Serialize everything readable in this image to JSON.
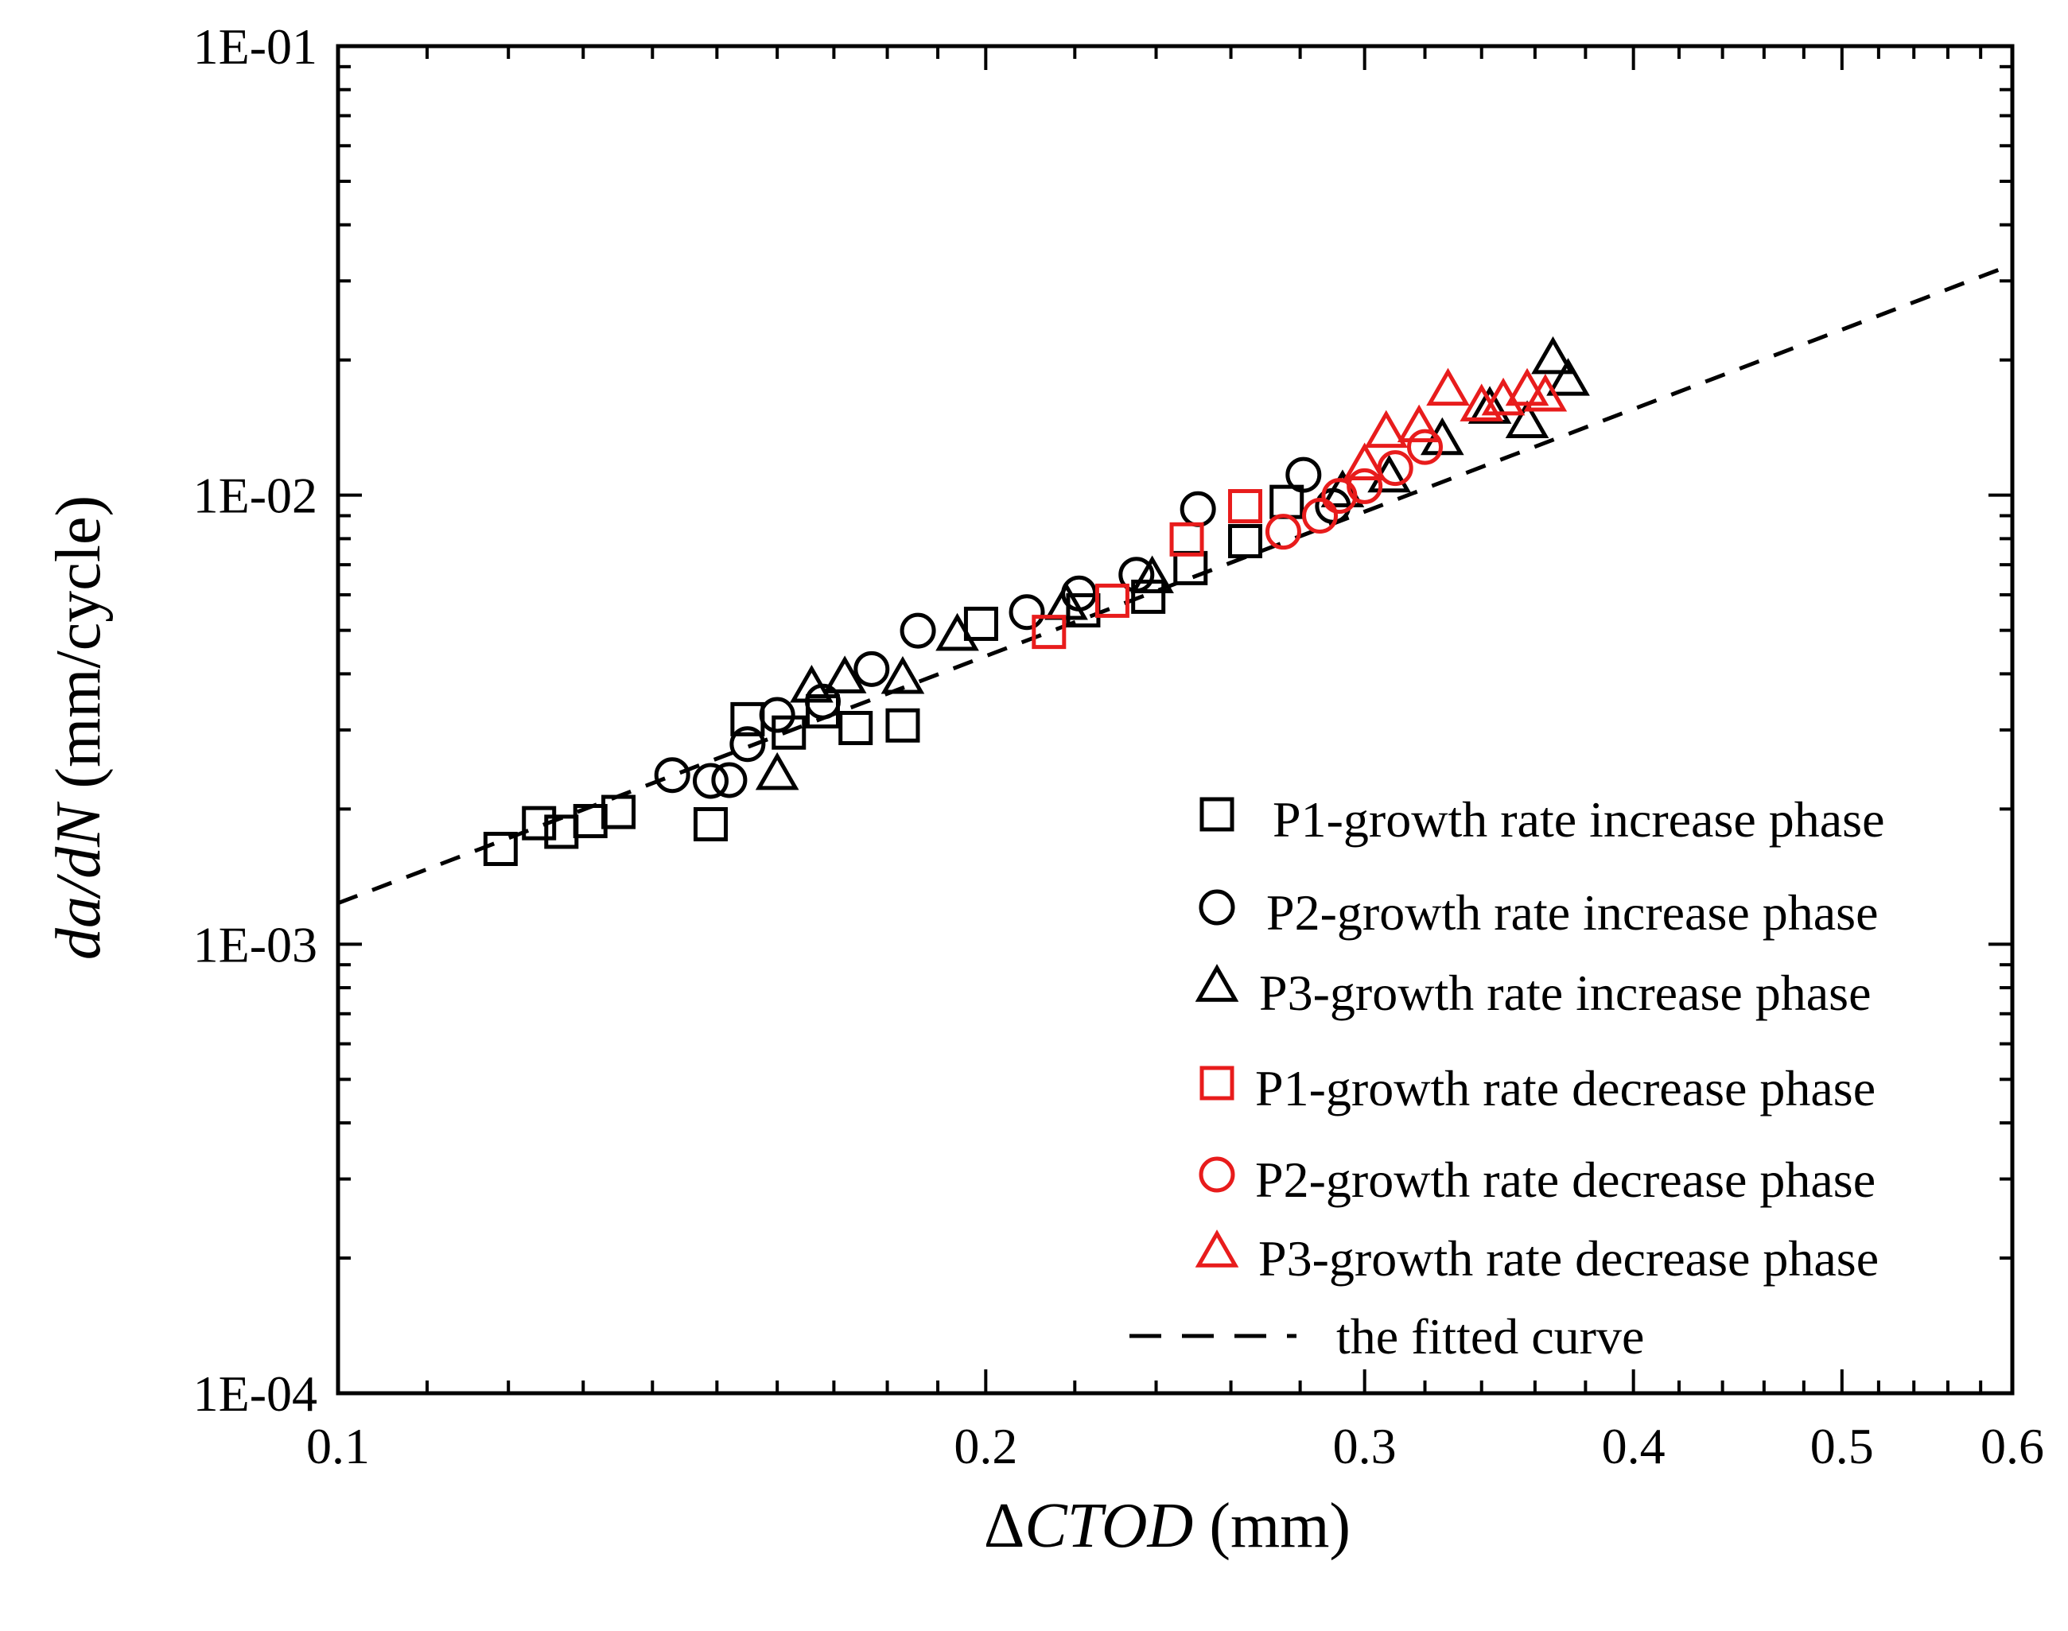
{
  "chart_data": {
    "type": "scatter",
    "title": "",
    "xlabel": {
      "prefix": "Δ",
      "italic": "CTOD",
      "suffix": " (mm)"
    },
    "ylabel": {
      "italic": "da/dN",
      "suffix": " (mm/cycle)"
    },
    "x_scale": "log",
    "y_scale": "log",
    "xlim": [
      0.1,
      0.6
    ],
    "ylim": [
      0.0001,
      0.1
    ],
    "x_tick_values": [
      0.1,
      0.2,
      0.3,
      0.4,
      0.5,
      0.6
    ],
    "x_tick_labels": [
      "0.1",
      "0.2",
      "0.3",
      "0.4",
      "0.5",
      "0.6"
    ],
    "y_tick_values": [
      0.0001,
      0.001,
      0.01,
      0.1
    ],
    "y_tick_labels": [
      "1E-04",
      "1E-03",
      "1E-02",
      "1E-01"
    ],
    "legend_position": "bottom-right",
    "colors": {
      "increase": "#000000",
      "decrease": "#e81c1c"
    },
    "series": [
      {
        "name": "P1-growth rate increase phase",
        "marker": "square",
        "color": "#000000",
        "points": [
          [
            0.119,
            0.00163
          ],
          [
            0.124,
            0.00186
          ],
          [
            0.127,
            0.00178
          ],
          [
            0.131,
            0.00188
          ],
          [
            0.135,
            0.00197
          ],
          [
            0.149,
            0.00185
          ],
          [
            0.155,
            0.00317
          ],
          [
            0.162,
            0.00296
          ],
          [
            0.168,
            0.0033
          ],
          [
            0.174,
            0.00303
          ],
          [
            0.183,
            0.00307
          ],
          [
            0.199,
            0.00517
          ],
          [
            0.222,
            0.00554
          ],
          [
            0.238,
            0.00594
          ],
          [
            0.249,
            0.00688
          ],
          [
            0.264,
            0.0079
          ],
          [
            0.276,
            0.00966
          ]
        ]
      },
      {
        "name": "P2-growth rate increase phase",
        "marker": "circle",
        "color": "#000000",
        "points": [
          [
            0.143,
            0.00238
          ],
          [
            0.149,
            0.00231
          ],
          [
            0.152,
            0.00232
          ],
          [
            0.155,
            0.00279
          ],
          [
            0.16,
            0.00324
          ],
          [
            0.168,
            0.00347
          ],
          [
            0.177,
            0.0041
          ],
          [
            0.186,
            0.00499
          ],
          [
            0.209,
            0.00549
          ],
          [
            0.221,
            0.00604
          ],
          [
            0.235,
            0.00665
          ],
          [
            0.251,
            0.00931
          ],
          [
            0.281,
            0.0111
          ],
          [
            0.29,
            0.00946
          ]
        ]
      },
      {
        "name": "P3-growth rate increase phase",
        "marker": "triangle",
        "color": "#000000",
        "points": [
          [
            0.16,
            0.00237
          ],
          [
            0.166,
            0.00371
          ],
          [
            0.172,
            0.00389
          ],
          [
            0.183,
            0.00388
          ],
          [
            0.194,
            0.00484
          ],
          [
            0.218,
            0.00567
          ],
          [
            0.239,
            0.0065
          ],
          [
            0.293,
            0.0101
          ],
          [
            0.308,
            0.0109
          ],
          [
            0.326,
            0.0132
          ],
          [
            0.357,
            0.0144
          ],
          [
            0.367,
            0.02
          ],
          [
            0.373,
            0.0179
          ],
          [
            0.343,
            0.0155
          ]
        ]
      },
      {
        "name": "P1-growth rate decrease phase",
        "marker": "square",
        "color": "#e81c1c",
        "points": [
          [
            0.214,
            0.00496
          ],
          [
            0.229,
            0.00582
          ],
          [
            0.248,
            0.00797
          ],
          [
            0.264,
            0.00945
          ]
        ]
      },
      {
        "name": "P2-growth rate decrease phase",
        "marker": "circle",
        "color": "#e81c1c",
        "points": [
          [
            0.275,
            0.00829
          ],
          [
            0.286,
            0.009
          ],
          [
            0.292,
            0.00996
          ],
          [
            0.3,
            0.01047
          ],
          [
            0.31,
            0.01149
          ],
          [
            0.32,
            0.0128
          ]
        ]
      },
      {
        "name": "P3-growth rate decrease phase",
        "marker": "triangle",
        "color": "#e81c1c",
        "points": [
          [
            0.3,
            0.0116
          ],
          [
            0.307,
            0.0137
          ],
          [
            0.318,
            0.0141
          ],
          [
            0.328,
            0.01701
          ],
          [
            0.34,
            0.01569
          ],
          [
            0.348,
            0.01618
          ],
          [
            0.357,
            0.017
          ],
          [
            0.364,
            0.0165
          ]
        ]
      }
    ],
    "fit": {
      "name": "the fitted curve",
      "style": "dashed",
      "color": "#000000",
      "coefficient": 0.08295,
      "exponent": 1.8274,
      "x_range": [
        0.1,
        0.6
      ]
    }
  }
}
